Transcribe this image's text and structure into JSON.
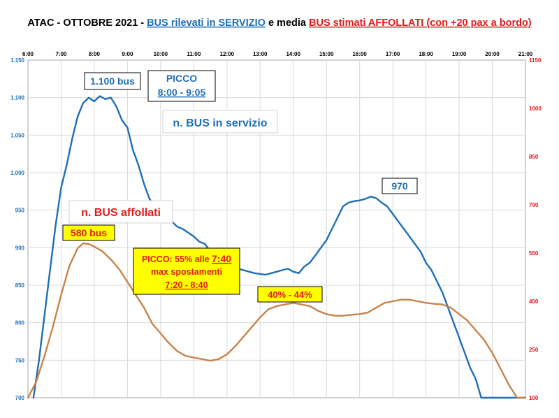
{
  "chart_data": {
    "type": "line",
    "title_parts": [
      {
        "text": "ATAC - OTTOBRE 2021 - ",
        "color": "#000000",
        "underline": false
      },
      {
        "text": "BUS rilevati in SERVIZIO",
        "color": "#1f6fb5",
        "underline": true
      },
      {
        "text": " e media ",
        "color": "#000000",
        "underline": false
      },
      {
        "text": "BUS stimati AFFOLLATI",
        "color": "#e31a1c",
        "underline": true
      },
      {
        "text": "  (con +20 pax a bordo)",
        "color": "#e31a1c",
        "underline": true
      }
    ],
    "x_tick_labels": [
      "6:00",
      "7:00",
      "8:00",
      "9:00",
      "10:00",
      "11:00",
      "12:00",
      "13:00",
      "14:00",
      "15:00",
      "16:00",
      "17:00",
      "18:00",
      "19:00",
      "20:00",
      "21:00"
    ],
    "x_range_hours": [
      6,
      21
    ],
    "y_left": {
      "min": 700,
      "max": 1150,
      "ticks": [
        700,
        750,
        800,
        850,
        900,
        950,
        1000,
        1050,
        1100,
        1150
      ],
      "tick_labels": [
        "700",
        "750",
        "800",
        "850",
        "900",
        "950",
        "1.000",
        "1.050",
        "1.100",
        "1.150"
      ]
    },
    "y_right": {
      "min": 100,
      "max": 1150,
      "ticks": [
        100,
        250,
        400,
        550,
        700,
        850,
        1000,
        1150
      ],
      "tick_labels": [
        "100",
        "250",
        "400",
        "550",
        "700",
        "850",
        "1000",
        "1150"
      ]
    },
    "grid": true,
    "series": [
      {
        "name": "n. BUS in servizio",
        "axis": "left",
        "color": "#1f6fb5",
        "x": [
          "6:10",
          "6:20",
          "6:30",
          "6:40",
          "6:50",
          "7:00",
          "7:10",
          "7:20",
          "7:30",
          "7:40",
          "7:50",
          "8:00",
          "8:10",
          "8:20",
          "8:30",
          "8:40",
          "8:50",
          "9:00",
          "9:10",
          "9:20",
          "9:30",
          "9:40",
          "9:50",
          "10:00",
          "10:10",
          "10:20",
          "10:30",
          "10:40",
          "10:50",
          "11:00",
          "11:10",
          "11:20",
          "11:30",
          "11:40",
          "11:50",
          "12:00",
          "12:10",
          "12:20",
          "12:30",
          "12:40",
          "12:50",
          "13:00",
          "13:10",
          "13:20",
          "13:30",
          "13:40",
          "13:50",
          "14:00",
          "14:10",
          "14:20",
          "14:30",
          "14:40",
          "14:50",
          "15:00",
          "15:10",
          "15:20",
          "15:30",
          "15:40",
          "15:50",
          "16:00",
          "16:10",
          "16:20",
          "16:30",
          "16:40",
          "16:50",
          "17:00",
          "17:10",
          "17:20",
          "17:30",
          "17:40",
          "17:50",
          "18:00",
          "18:10",
          "18:20",
          "18:30",
          "18:40",
          "18:50",
          "19:00",
          "19:10",
          "19:20",
          "19:30",
          "19:40",
          "19:50",
          "20:00",
          "20:10",
          "20:20",
          "20:30",
          "20:40",
          "20:50",
          "21:00"
        ],
        "y": [
          700,
          750,
          810,
          870,
          930,
          980,
          1010,
          1045,
          1075,
          1093,
          1100,
          1095,
          1102,
          1098,
          1100,
          1088,
          1070,
          1060,
          1030,
          1010,
          985,
          965,
          955,
          950,
          945,
          935,
          928,
          925,
          920,
          915,
          908,
          905,
          895,
          888,
          882,
          880,
          875,
          872,
          870,
          868,
          866,
          865,
          864,
          866,
          868,
          870,
          872,
          868,
          866,
          875,
          880,
          890,
          900,
          910,
          925,
          940,
          955,
          960,
          962,
          963,
          965,
          968,
          966,
          960,
          955,
          945,
          935,
          925,
          915,
          905,
          895,
          880,
          870,
          855,
          840,
          820,
          800,
          780,
          760,
          740,
          725,
          700,
          700,
          700,
          700,
          700,
          700,
          700,
          700,
          700
        ],
        "note": "values read approximately from the plotted curve"
      },
      {
        "name": "n. BUS affollati",
        "axis": "right",
        "color": "#c8834a",
        "x": [
          "6:00",
          "6:15",
          "6:30",
          "6:45",
          "7:00",
          "7:15",
          "7:30",
          "7:40",
          "7:50",
          "8:00",
          "8:15",
          "8:30",
          "8:45",
          "9:00",
          "9:15",
          "9:30",
          "9:45",
          "10:00",
          "10:15",
          "10:30",
          "10:45",
          "11:00",
          "11:15",
          "11:30",
          "11:45",
          "12:00",
          "12:15",
          "12:30",
          "12:45",
          "13:00",
          "13:15",
          "13:30",
          "13:45",
          "14:00",
          "14:15",
          "14:30",
          "14:45",
          "15:00",
          "15:15",
          "15:30",
          "15:45",
          "16:00",
          "16:15",
          "16:30",
          "16:45",
          "17:00",
          "17:15",
          "17:30",
          "17:45",
          "18:00",
          "18:15",
          "18:30",
          "18:45",
          "19:00",
          "19:15",
          "19:30",
          "19:45",
          "20:00",
          "20:15",
          "20:30",
          "20:45",
          "21:00"
        ],
        "y": [
          100,
          150,
          230,
          320,
          420,
          510,
          565,
          580,
          578,
          570,
          555,
          530,
          500,
          460,
          420,
          380,
          330,
          300,
          270,
          245,
          230,
          225,
          220,
          215,
          220,
          235,
          260,
          290,
          320,
          350,
          375,
          385,
          390,
          395,
          390,
          385,
          370,
          360,
          355,
          355,
          358,
          360,
          365,
          380,
          395,
          400,
          405,
          405,
          400,
          395,
          392,
          390,
          380,
          360,
          340,
          310,
          280,
          240,
          190,
          140,
          100,
          90
        ],
        "note": "values read approximately from the plotted curve"
      }
    ]
  },
  "annotations": {
    "peak_count": "1.100 bus",
    "picco_title": "PICCO",
    "picco_range": "8:00 - 9:05",
    "bus_servizio_label": "n. BUS in servizio",
    "afternoon_peak": "970",
    "affollati_label": "n. BUS affollati",
    "affollati_peak": "580 bus",
    "picco2_line1_prefix": "PICCO: 55% alle ",
    "picco2_line1_time": "7:40",
    "picco2_line2": "max spostamenti",
    "picco2_line3": "7:20 - 8:40",
    "pct_range": "40% - 44%"
  },
  "colors": {
    "blue": "#1f6fb5",
    "orange": "#c8834a",
    "red": "#e31a1c",
    "yellow": "#ffff00",
    "grid": "#d9d9d9"
  }
}
